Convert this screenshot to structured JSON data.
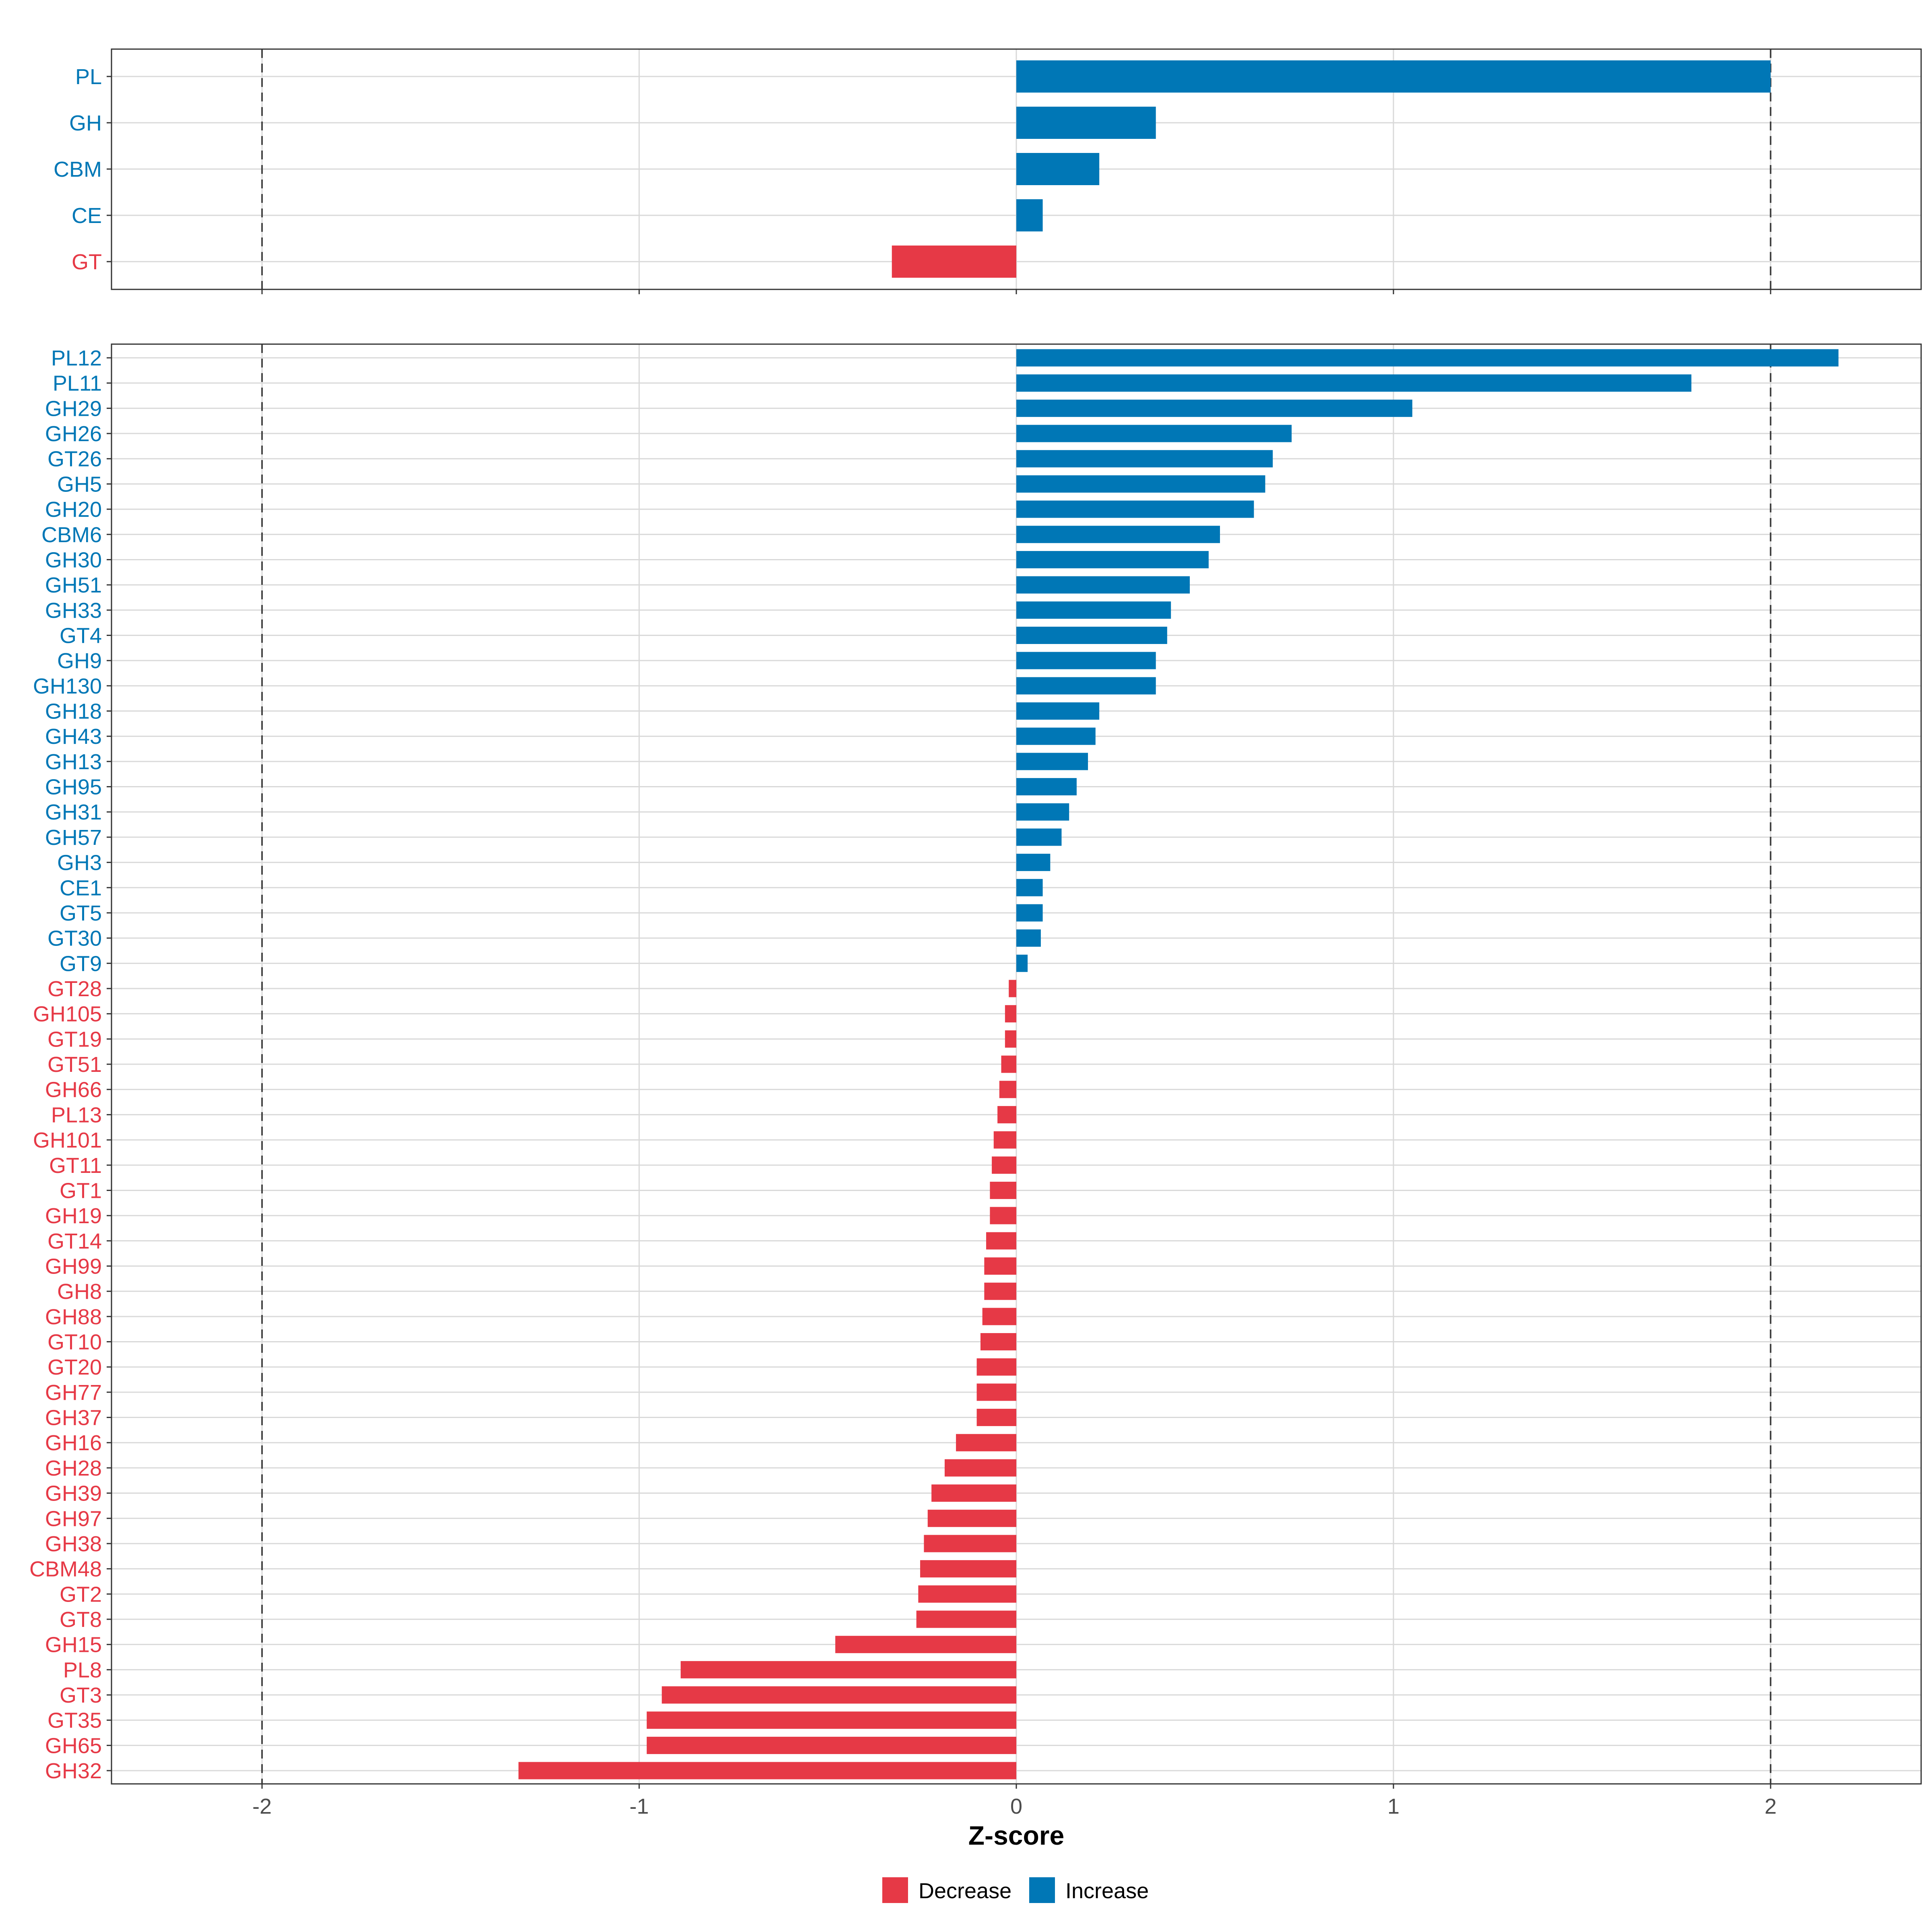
{
  "colors": {
    "decrease": "#E63946",
    "increase": "#0077B6",
    "grid": "#D9D9D9",
    "frame": "#333333",
    "refline": "#444444"
  },
  "legend": {
    "decrease_label": "Decrease",
    "increase_label": "Increase"
  },
  "chart_data": [
    {
      "type": "bar",
      "orientation": "horizontal",
      "panel": "family",
      "xlabel": "Z-score",
      "xlim": [
        -2.4,
        2.4
      ],
      "xticks": [
        -2,
        -1,
        0,
        1,
        2
      ],
      "reference_lines": [
        -2,
        2
      ],
      "grid": true,
      "categories": [
        "PL",
        "GH",
        "CBM",
        "CE",
        "GT"
      ],
      "values": [
        2.0,
        0.37,
        0.22,
        0.07,
        -0.33
      ]
    },
    {
      "type": "bar",
      "orientation": "horizontal",
      "panel": "subfamily",
      "xlabel": "Z-score",
      "xlim": [
        -2.4,
        2.4
      ],
      "xticks": [
        -2,
        -1,
        0,
        1,
        2
      ],
      "reference_lines": [
        -2,
        2
      ],
      "grid": true,
      "categories": [
        "PL12",
        "PL11",
        "GH29",
        "GH26",
        "GT26",
        "GH5",
        "GH20",
        "CBM6",
        "GH30",
        "GH51",
        "GH33",
        "GT4",
        "GH9",
        "GH130",
        "GH18",
        "GH43",
        "GH13",
        "GH95",
        "GH31",
        "GH57",
        "GH3",
        "CE1",
        "GT5",
        "GT30",
        "GT9",
        "GT28",
        "GH105",
        "GT19",
        "GT51",
        "GH66",
        "PL13",
        "GH101",
        "GT11",
        "GT1",
        "GH19",
        "GT14",
        "GH99",
        "GH8",
        "GH88",
        "GT10",
        "GT20",
        "GH77",
        "GH37",
        "GH16",
        "GH28",
        "GH39",
        "GH97",
        "GH38",
        "CBM48",
        "GT2",
        "GT8",
        "GH15",
        "PL8",
        "GT3",
        "GT35",
        "GH65",
        "GH32"
      ],
      "values": [
        2.18,
        1.79,
        1.05,
        0.73,
        0.68,
        0.66,
        0.63,
        0.54,
        0.51,
        0.46,
        0.41,
        0.4,
        0.37,
        0.37,
        0.22,
        0.21,
        0.19,
        0.16,
        0.14,
        0.12,
        0.09,
        0.07,
        0.07,
        0.065,
        0.03,
        -0.02,
        -0.03,
        -0.03,
        -0.04,
        -0.045,
        -0.05,
        -0.06,
        -0.065,
        -0.07,
        -0.07,
        -0.08,
        -0.085,
        -0.085,
        -0.09,
        -0.095,
        -0.105,
        -0.105,
        -0.105,
        -0.16,
        -0.19,
        -0.225,
        -0.235,
        -0.245,
        -0.255,
        -0.26,
        -0.265,
        -0.48,
        -0.89,
        -0.94,
        -0.98,
        -0.98,
        -1.32
      ]
    }
  ]
}
